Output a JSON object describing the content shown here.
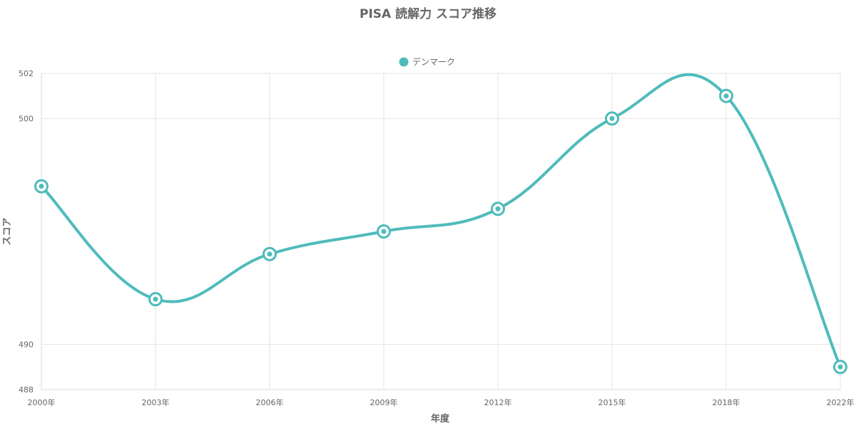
{
  "chart_data": {
    "type": "line",
    "title": "PISA 読解力 スコア推移",
    "xlabel": "年度",
    "ylabel": "スコア",
    "categories": [
      "2000年",
      "2003年",
      "2006年",
      "2009年",
      "2012年",
      "2015年",
      "2018年",
      "2022年"
    ],
    "series": [
      {
        "name": "デンマーク",
        "color": "#4fbbbb",
        "values": [
          497,
          492,
          494,
          495,
          496,
          500,
          501,
          489
        ]
      }
    ],
    "ylim": [
      488,
      502
    ],
    "yticks": [
      488,
      490,
      500,
      502
    ],
    "grid": true,
    "legend_position": "top-center"
  }
}
